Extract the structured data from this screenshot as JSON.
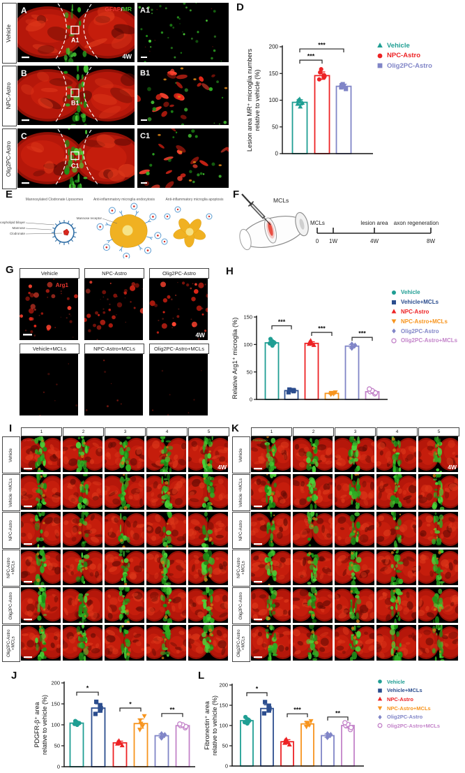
{
  "colors": {
    "teal": "#1f9e93",
    "navy": "#2b4d8e",
    "red": "#ed2224",
    "orange": "#f7941d",
    "periwinkle": "#8085c7",
    "violet": "#c383c9",
    "stain_red": "#e8362e",
    "stain_green": "#3fbf2a"
  },
  "panelABC": {
    "rows": [
      {
        "letter": "A",
        "label": "Vehicle",
        "inset_letter": "A1",
        "box_label": "A1"
      },
      {
        "letter": "B",
        "label": "NPC-Astro",
        "inset_letter": "B1",
        "box_label": "B1"
      },
      {
        "letter": "C",
        "label": "Olig2PC-Astro",
        "inset_letter": "C1",
        "box_label": "C1"
      }
    ],
    "stain": {
      "red": "GFAP",
      "sep": "/",
      "green": "MR"
    },
    "timepoint": "4W"
  },
  "panelD": {
    "letter": "D"
  },
  "panelE": {
    "letter": "E",
    "captions": [
      "Mannosylated Clodronate Liposomes",
      "Anti-inflammatory microglia endocytosis",
      "Anti-inflammatory microglia apoptosis"
    ],
    "liposome_labels": [
      "Phospholipid bilayer",
      "Mannose",
      "Clodronate"
    ],
    "receptor_label": "Mannose receptor"
  },
  "panelF": {
    "letter": "F",
    "injection_label": "MCLs",
    "timeline": {
      "event_labels": [
        "MCLs",
        "lesion area",
        "axon regeneration"
      ],
      "tick_labels": [
        "0",
        "1W",
        "4W",
        "8W"
      ]
    }
  },
  "panelG": {
    "letter": "G",
    "top_labels": [
      "Vehicle",
      "NPC-Astro",
      "Olig2PC-Astro"
    ],
    "bottom_labels": [
      "Vehicle+MCLs",
      "NPC-Astro+MCLs",
      "Olig2PC-Astro+MCLs"
    ],
    "stain": "Arg1",
    "timepoint": "4W"
  },
  "panelH": {
    "letter": "H"
  },
  "panelI": {
    "letter": "I",
    "column_labels": [
      "1",
      "2",
      "3",
      "4",
      "5"
    ],
    "row_labels": [
      "Vehicle",
      "Vehicle +MCLs",
      "NPC-Astro",
      "NPC-Astro +MCLs",
      "Olig2PC-Astro",
      "Olig2PC-Astro +MCLs"
    ],
    "stain_red": "GFAP/",
    "stain_green": "PDGFR-β",
    "timepoint": "4W"
  },
  "panelK": {
    "letter": "K",
    "column_labels": [
      "1",
      "2",
      "3",
      "4",
      "5"
    ],
    "row_labels": [
      "Vehicle",
      "Vehicle +MCLs",
      "NPC-Astro",
      "NPC-Astro +MCLs",
      "Olig2PC-Astro",
      "Olig2PC-Astro +MCLs"
    ],
    "stain_red": "",
    "stain_green": "Fibronectin",
    "timepoint": "4W"
  },
  "panelJ": {
    "letter": "J"
  },
  "panelL": {
    "letter": "L"
  },
  "legend_D": [
    {
      "label": "Vehicle",
      "marker": "triangle",
      "color_key": "teal"
    },
    {
      "label": "NPC-Astro",
      "marker": "circle",
      "color_key": "red"
    },
    {
      "label": "Olig2PC-Astro",
      "marker": "square",
      "color_key": "periwinkle"
    }
  ],
  "legend_6": [
    {
      "label": "Vehicle",
      "marker": "circle",
      "color_key": "teal"
    },
    {
      "label": "Vehicle+MCLs",
      "marker": "square",
      "color_key": "navy"
    },
    {
      "label": "NPC-Astro",
      "marker": "triangle",
      "color_key": "red"
    },
    {
      "label": "NPC-Astro+MCLs",
      "marker": "triangle-down",
      "color_key": "orange"
    },
    {
      "label": "Olig2PC-Astro",
      "marker": "diamond",
      "color_key": "periwinkle"
    },
    {
      "label": "Olig2PC-Astro+MCLs",
      "marker": "circle-open",
      "color_key": "violet"
    }
  ],
  "chart_data": [
    {
      "id": "D",
      "type": "bar",
      "ylabel_lines": [
        "Lesion area MR⁺ microglia numbers",
        "relative to vehicle (%)"
      ],
      "categories": [
        "Vehicle",
        "NPC-Astro",
        "Olig2PC-Astro"
      ],
      "values": [
        96,
        146,
        126
      ],
      "errors": [
        5,
        7,
        4
      ],
      "points": [
        [
          88,
          93,
          95,
          98,
          100,
          102
        ],
        [
          139,
          143,
          145,
          147,
          152,
          158
        ],
        [
          121,
          124,
          126,
          128,
          130
        ]
      ],
      "markers": [
        "triangle",
        "circle",
        "square"
      ],
      "color_keys": [
        "teal",
        "red",
        "periwinkle"
      ],
      "ylim": [
        0,
        200
      ],
      "yticks": [
        0,
        50,
        100,
        150,
        200
      ],
      "significance": [
        {
          "a": 0,
          "b": 1,
          "y": 175,
          "label": "***"
        },
        {
          "a": 0,
          "b": 2,
          "y": 196,
          "label": "***"
        }
      ]
    },
    {
      "id": "H",
      "type": "bar",
      "ylabel_lines": [
        "Relative Arg1⁺ microglia (%)"
      ],
      "categories": [
        "Vehicle",
        "Vehicle+MCLs",
        "NPC-Astro",
        "NPC-Astro+MCLs",
        "Olig2PC-Astro",
        "Olig2PC-Astro+MCLs"
      ],
      "values": [
        103,
        16,
        102,
        11,
        97,
        14
      ],
      "errors": [
        4,
        2,
        3,
        1.5,
        3,
        3
      ],
      "points": [
        [
          98,
          102,
          103,
          106,
          110
        ],
        [
          13,
          15,
          16,
          17,
          18
        ],
        [
          99,
          101,
          102,
          104,
          107
        ],
        [
          9,
          10,
          11,
          12,
          13
        ],
        [
          93,
          96,
          97,
          99,
          101
        ],
        [
          10,
          12,
          14,
          16,
          19
        ]
      ],
      "markers": [
        "circle",
        "square",
        "triangle",
        "triangle-down",
        "diamond",
        "circle-open"
      ],
      "color_keys": [
        "teal",
        "navy",
        "red",
        "orange",
        "periwinkle",
        "violet"
      ],
      "ylim": [
        0,
        150
      ],
      "yticks": [
        0,
        50,
        100,
        150
      ],
      "significance": [
        {
          "a": 0,
          "b": 1,
          "y": 134,
          "label": "***"
        },
        {
          "a": 2,
          "b": 3,
          "y": 122,
          "label": "***"
        },
        {
          "a": 4,
          "b": 5,
          "y": 113,
          "label": "***"
        }
      ]
    },
    {
      "id": "J",
      "type": "bar",
      "ylabel_lines": [
        "PDGFR-β⁺ area",
        "relative to vehicle (%)"
      ],
      "categories": [
        "Vehicle",
        "Vehicle+MCLs",
        "NPC-Astro",
        "NPC-Astro+MCLs",
        "Olig2PC-Astro",
        "Olig2PC-Astro+MCLs"
      ],
      "values": [
        104,
        140,
        57,
        103,
        74,
        98
      ],
      "errors": [
        4,
        10,
        4,
        11,
        4,
        3
      ],
      "points": [
        [
          100,
          102,
          104,
          106,
          109
        ],
        [
          126,
          134,
          140,
          147,
          155
        ],
        [
          51,
          55,
          57,
          59,
          62
        ],
        [
          88,
          97,
          103,
          111,
          121
        ],
        [
          68,
          72,
          74,
          77,
          79
        ],
        [
          93,
          96,
          98,
          100,
          102
        ]
      ],
      "markers": [
        "circle",
        "square",
        "triangle",
        "triangle-down",
        "diamond",
        "circle-open"
      ],
      "color_keys": [
        "teal",
        "navy",
        "red",
        "orange",
        "periwinkle",
        "violet"
      ],
      "ylim": [
        0,
        200
      ],
      "yticks": [
        0,
        50,
        100,
        150,
        200
      ],
      "significance": [
        {
          "a": 0,
          "b": 1,
          "y": 178,
          "label": "*"
        },
        {
          "a": 2,
          "b": 3,
          "y": 140,
          "label": "*"
        },
        {
          "a": 4,
          "b": 5,
          "y": 127,
          "label": "**"
        }
      ]
    },
    {
      "id": "L",
      "type": "bar",
      "ylabel_lines": [
        "Fibronectin⁺ area",
        "relative to vehicle (%)"
      ],
      "categories": [
        "Vehicle",
        "Vehicle+MCLs",
        "NPC-Astro",
        "NPC-Astro+MCLs",
        "Olig2PC-Astro",
        "Olig2PC-Astro+MCLs"
      ],
      "values": [
        112,
        142,
        60,
        104,
        75,
        100
      ],
      "errors": [
        6,
        9,
        5,
        5,
        4,
        6
      ],
      "points": [
        [
          105,
          108,
          112,
          116,
          121
        ],
        [
          130,
          137,
          142,
          149,
          158
        ],
        [
          53,
          57,
          60,
          63,
          66
        ],
        [
          97,
          101,
          104,
          107,
          111
        ],
        [
          70,
          74,
          75,
          78,
          80
        ],
        [
          90,
          95,
          100,
          103,
          107
        ]
      ],
      "markers": [
        "circle",
        "square",
        "triangle",
        "triangle-down",
        "diamond",
        "circle-open"
      ],
      "color_keys": [
        "teal",
        "navy",
        "red",
        "orange",
        "periwinkle",
        "violet"
      ],
      "ylim": [
        0,
        200
      ],
      "yticks": [
        0,
        50,
        100,
        150,
        200
      ],
      "significance": [
        {
          "a": 0,
          "b": 1,
          "y": 181,
          "label": "*"
        },
        {
          "a": 2,
          "b": 3,
          "y": 129,
          "label": "***"
        },
        {
          "a": 4,
          "b": 5,
          "y": 121,
          "label": "**"
        }
      ]
    }
  ]
}
